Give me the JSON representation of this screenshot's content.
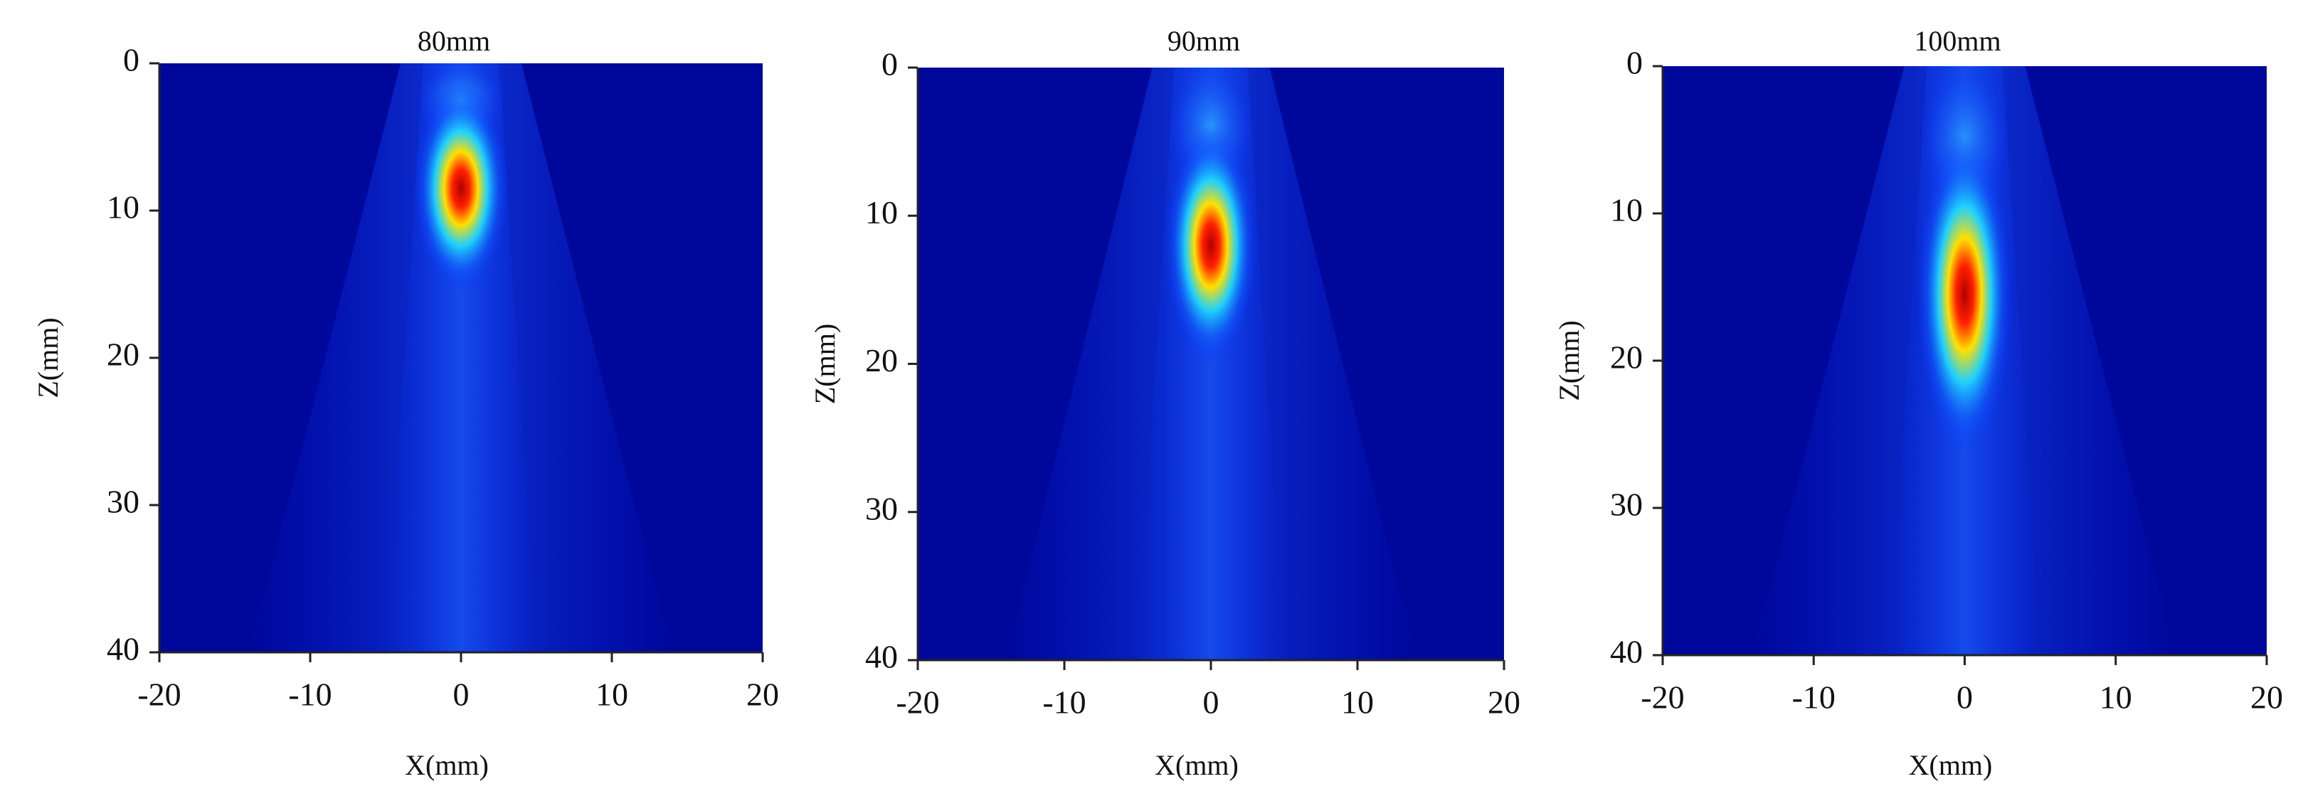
{
  "chart_data": [
    {
      "type": "heatmap",
      "title": "80mm",
      "xlabel": "X(mm)",
      "ylabel": "Z(mm)",
      "xlim": [
        -20,
        20
      ],
      "ylim": [
        40,
        0
      ],
      "xticks": [
        -20,
        -10,
        0,
        10,
        20
      ],
      "yticks": [
        0,
        10,
        20,
        30,
        40
      ],
      "focus": {
        "x": 0,
        "z": [
          5,
          12
        ]
      }
    },
    {
      "type": "heatmap",
      "title": "90mm",
      "xlabel": "X(mm)",
      "ylabel": "Z(mm)",
      "xlim": [
        -20,
        20
      ],
      "ylim": [
        40,
        0
      ],
      "xticks": [
        -20,
        -10,
        0,
        10,
        20
      ],
      "yticks": [
        0,
        10,
        20,
        30,
        40
      ],
      "focus": {
        "x": 0,
        "z": [
          8,
          16
        ]
      }
    },
    {
      "type": "heatmap",
      "title": "100mm",
      "xlabel": "X(mm)",
      "ylabel": "Z(mm)",
      "xlim": [
        -20,
        20
      ],
      "ylim": [
        40,
        0
      ],
      "xticks": [
        -20,
        -10,
        0,
        10,
        20
      ],
      "yticks": [
        0,
        10,
        20,
        30,
        40
      ],
      "focus": {
        "x": 0,
        "z": [
          10,
          21
        ]
      }
    }
  ]
}
